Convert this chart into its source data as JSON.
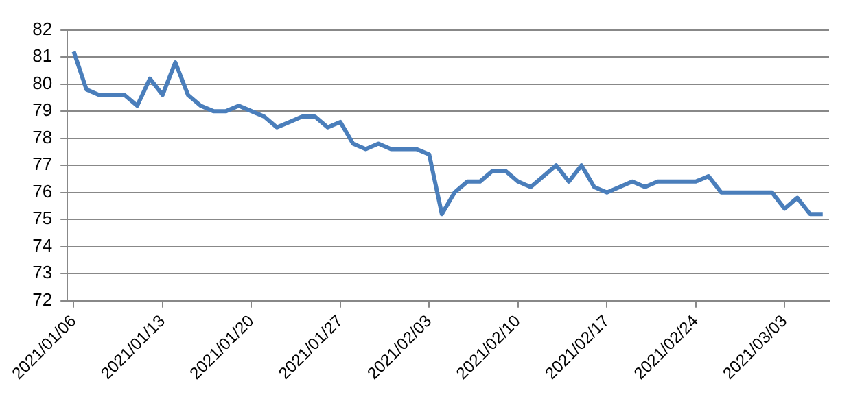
{
  "chart_data": {
    "type": "line",
    "categories": [
      "2021/01/06",
      null,
      null,
      null,
      null,
      null,
      null,
      "2021/01/13",
      null,
      null,
      null,
      null,
      null,
      null,
      "2021/01/20",
      null,
      null,
      null,
      null,
      null,
      null,
      "2021/01/27",
      null,
      null,
      null,
      null,
      null,
      null,
      "2021/02/03",
      null,
      null,
      null,
      null,
      null,
      null,
      "2021/02/10",
      null,
      null,
      null,
      null,
      null,
      null,
      "2021/02/17",
      null,
      null,
      null,
      null,
      null,
      null,
      "2021/02/24",
      null,
      null,
      null,
      null,
      null,
      null,
      "2021/03/03",
      null,
      null,
      null
    ],
    "series": [
      {
        "color": "#4a7ebb",
        "values": [
          81.2,
          79.8,
          79.6,
          79.6,
          79.6,
          79.2,
          80.2,
          79.6,
          80.8,
          79.6,
          79.2,
          79.0,
          79.0,
          79.2,
          79.0,
          78.8,
          78.4,
          78.6,
          78.8,
          78.8,
          78.4,
          78.6,
          77.8,
          77.6,
          77.8,
          77.6,
          77.6,
          77.6,
          77.4,
          75.2,
          76.0,
          76.4,
          76.4,
          76.8,
          76.8,
          76.4,
          76.2,
          76.6,
          77.0,
          76.4,
          77.0,
          76.2,
          76.0,
          76.2,
          76.4,
          76.2,
          76.4,
          76.4,
          76.4,
          76.4,
          76.6,
          76.0,
          76.0,
          76.0,
          76.0,
          76.0,
          75.4,
          75.8,
          75.2,
          75.2
        ]
      }
    ],
    "ylim": [
      72,
      82
    ],
    "yticks": [
      72,
      73,
      74,
      75,
      76,
      77,
      78,
      79,
      80,
      81,
      82
    ],
    "grid": "y",
    "legend": false,
    "marker": "none",
    "line_style": "solid"
  }
}
